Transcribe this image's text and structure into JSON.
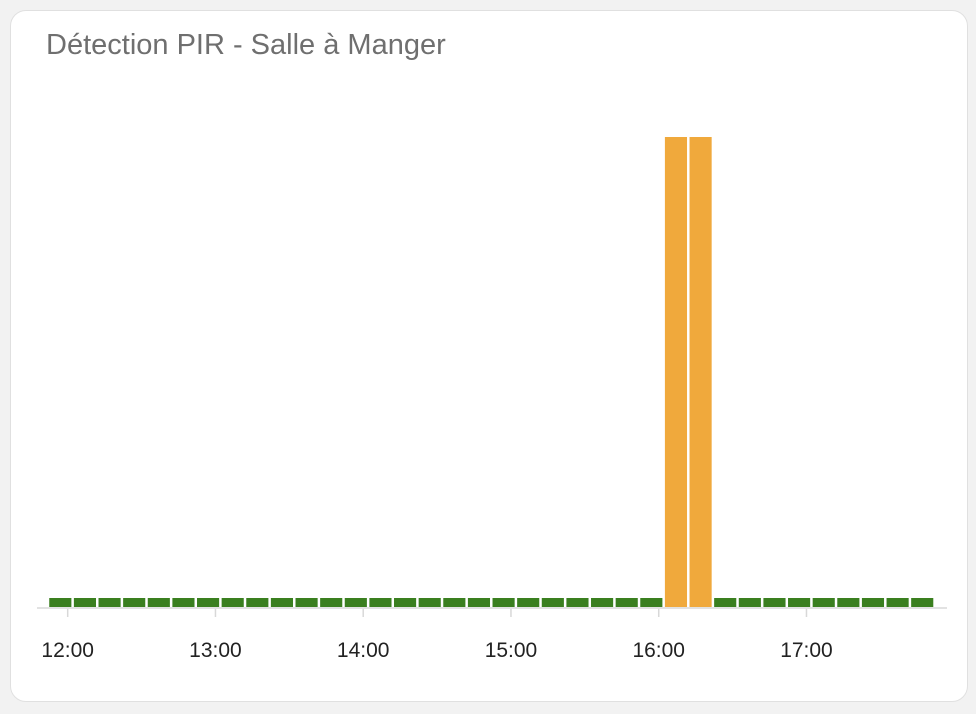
{
  "card": {
    "title": "Détection PIR - Salle à Manger"
  },
  "chart_data": {
    "type": "bar",
    "title": "Détection PIR - Salle à Manger",
    "xlabel": "",
    "ylabel": "",
    "grid": false,
    "legend": "none",
    "x_range": [
      "11:52",
      "17:53"
    ],
    "y_range": [
      0,
      1
    ],
    "x_ticks": [
      "12:00",
      "13:00",
      "14:00",
      "15:00",
      "16:00",
      "17:00"
    ],
    "bar_interval_minutes": 10,
    "bars": [
      {
        "start": "11:52",
        "value": 0
      },
      {
        "start": "12:02",
        "value": 0
      },
      {
        "start": "12:12",
        "value": 0
      },
      {
        "start": "12:22",
        "value": 0
      },
      {
        "start": "12:32",
        "value": 0
      },
      {
        "start": "12:42",
        "value": 0
      },
      {
        "start": "12:52",
        "value": 0
      },
      {
        "start": "13:02",
        "value": 0
      },
      {
        "start": "13:12",
        "value": 0
      },
      {
        "start": "13:22",
        "value": 0
      },
      {
        "start": "13:32",
        "value": 0
      },
      {
        "start": "13:42",
        "value": 0
      },
      {
        "start": "13:52",
        "value": 0
      },
      {
        "start": "14:02",
        "value": 0
      },
      {
        "start": "14:12",
        "value": 0
      },
      {
        "start": "14:22",
        "value": 0
      },
      {
        "start": "14:32",
        "value": 0
      },
      {
        "start": "14:42",
        "value": 0
      },
      {
        "start": "14:52",
        "value": 0
      },
      {
        "start": "15:02",
        "value": 0
      },
      {
        "start": "15:12",
        "value": 0
      },
      {
        "start": "15:22",
        "value": 0
      },
      {
        "start": "15:32",
        "value": 0
      },
      {
        "start": "15:42",
        "value": 0
      },
      {
        "start": "15:52",
        "value": 0
      },
      {
        "start": "16:02",
        "value": 1
      },
      {
        "start": "16:12",
        "value": 1
      },
      {
        "start": "16:22",
        "value": 0
      },
      {
        "start": "16:32",
        "value": 0
      },
      {
        "start": "16:42",
        "value": 0
      },
      {
        "start": "16:52",
        "value": 0
      },
      {
        "start": "17:02",
        "value": 0
      },
      {
        "start": "17:12",
        "value": 0
      },
      {
        "start": "17:22",
        "value": 0
      },
      {
        "start": "17:32",
        "value": 0
      },
      {
        "start": "17:42",
        "value": 0
      }
    ],
    "colors": {
      "inactive": "#3a7f1f",
      "active": "#f0a93c",
      "axis": "#d8d8d8"
    }
  }
}
